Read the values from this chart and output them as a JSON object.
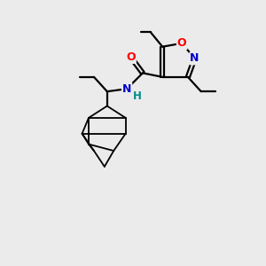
{
  "background_color": "#ebebeb",
  "bond_color": "#000000",
  "atom_colors": {
    "O": "#ff0000",
    "N": "#0000cd",
    "H": "#008b8b",
    "C": "#000000"
  },
  "figsize": [
    3.0,
    3.0
  ],
  "dpi": 100
}
